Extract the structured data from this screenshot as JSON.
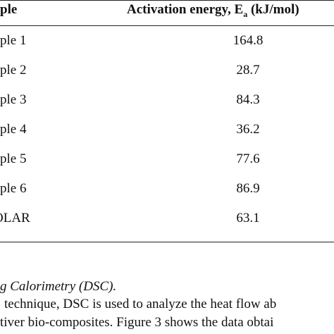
{
  "table": {
    "header": {
      "sample": "ple",
      "energy": {
        "prefix": "Activation energy, E",
        "subscript": "a",
        "suffix": "(kJ/mol)"
      }
    },
    "rows": [
      [
        "ple 1",
        164.8
      ],
      [
        "ple 2",
        28.7
      ],
      [
        "ple 3",
        84.3
      ],
      [
        "ple 4",
        36.2
      ],
      [
        "ple 5",
        77.6
      ],
      [
        "ple 6",
        86.9
      ],
      [
        "OLAR",
        63.1
      ]
    ]
  },
  "section": {
    "heading": "g Calorimetry (DSC).",
    "lines": [
      "technique, DSC is used to analyze the heat flow ab",
      "tiver bio-composites. Figure 3 shows the data obtai"
    ]
  }
}
